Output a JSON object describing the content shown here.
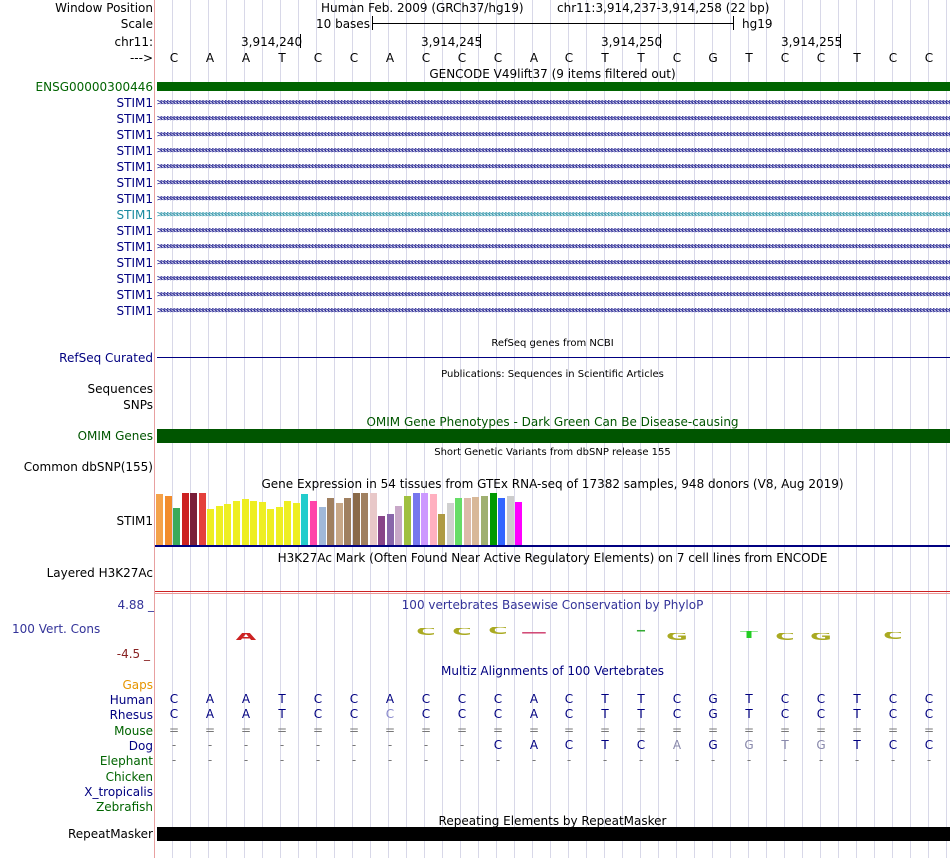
{
  "header": {
    "window_position_label": "Window Position",
    "scale_label": "Scale",
    "chr_label": "chr11:",
    "arrow_label": "--->",
    "assembly": "Human Feb. 2009 (GRCh37/hg19)",
    "position": "chr11:3,914,237-3,914,258 (22 bp)",
    "scale_bases": "10 bases",
    "db": "hg19",
    "coords": [
      "3,914,240",
      "3,914,245",
      "3,914,250",
      "3,914,255"
    ],
    "sequence": [
      "C",
      "A",
      "A",
      "T",
      "C",
      "C",
      "A",
      "C",
      "C",
      "C",
      "A",
      "C",
      "T",
      "T",
      "C",
      "G",
      "T",
      "C",
      "C",
      "T",
      "C",
      "C"
    ]
  },
  "gencode": {
    "title": "GENCODE V49lift37 (9 items filtered out)",
    "gene_label": "ENSG00000300446",
    "transcripts": [
      "STIM1",
      "STIM1",
      "STIM1",
      "STIM1",
      "STIM1",
      "STIM1",
      "STIM1",
      "STIM1",
      "STIM1",
      "STIM1",
      "STIM1",
      "STIM1",
      "STIM1",
      "STIM1"
    ]
  },
  "refseq": {
    "title": "RefSeq genes from NCBI",
    "label": "RefSeq Curated"
  },
  "publications": {
    "title": "Publications: Sequences in Scientific Articles",
    "label1": "Sequences",
    "label2": "SNPs"
  },
  "omim": {
    "title": "OMIM Gene Phenotypes - Dark Green Can Be Disease-causing",
    "label": "OMIM Genes"
  },
  "dbsnp": {
    "title": "Short Genetic Variants from dbSNP release 155",
    "label": "Common dbSNP(155)"
  },
  "gtex": {
    "title": "Gene Expression in 54 tissues from GTEx RNA-seq of 17382 samples, 948 donors (V8, Aug 2019)",
    "label": "STIM1",
    "bars": [
      {
        "v": 0.98,
        "c": "#f4a24a"
      },
      {
        "v": 0.95,
        "c": "#f28c2c"
      },
      {
        "v": 0.72,
        "c": "#3aaa5a"
      },
      {
        "v": 1.0,
        "c": "#cc2222"
      },
      {
        "v": 1.0,
        "c": "#7a1f3a"
      },
      {
        "v": 1.0,
        "c": "#e4403c"
      },
      {
        "v": 0.7,
        "c": "#eeee22"
      },
      {
        "v": 0.75,
        "c": "#eeee22"
      },
      {
        "v": 0.78,
        "c": "#eeee22"
      },
      {
        "v": 0.85,
        "c": "#eeee22"
      },
      {
        "v": 0.88,
        "c": "#eeee22"
      },
      {
        "v": 0.85,
        "c": "#eeee22"
      },
      {
        "v": 0.82,
        "c": "#eeee22"
      },
      {
        "v": 0.7,
        "c": "#eeee22"
      },
      {
        "v": 0.74,
        "c": "#eeee22"
      },
      {
        "v": 0.84,
        "c": "#eeee22"
      },
      {
        "v": 0.8,
        "c": "#eeee22"
      },
      {
        "v": 0.98,
        "c": "#22cccc"
      },
      {
        "v": 0.84,
        "c": "#ff44aa"
      },
      {
        "v": 0.74,
        "c": "#a0b8d8"
      },
      {
        "v": 0.9,
        "c": "#a08060"
      },
      {
        "v": 0.8,
        "c": "#c8a888"
      },
      {
        "v": 0.9,
        "c": "#a08060"
      },
      {
        "v": 1.0,
        "c": "#8a6a4a"
      },
      {
        "v": 1.0,
        "c": "#a08060"
      },
      {
        "v": 1.0,
        "c": "#e8c8c8"
      },
      {
        "v": 0.55,
        "c": "#884488"
      },
      {
        "v": 0.6,
        "c": "#8866aa"
      },
      {
        "v": 0.75,
        "c": "#c8a8c8"
      },
      {
        "v": 0.95,
        "c": "#a0c040"
      },
      {
        "v": 1.0,
        "c": "#7777ee"
      },
      {
        "v": 1.0,
        "c": "#cc99ff"
      },
      {
        "v": 0.98,
        "c": "#ffb0c0"
      },
      {
        "v": 0.6,
        "c": "#ae9a44"
      },
      {
        "v": 0.8,
        "c": "#d0d0d0"
      },
      {
        "v": 0.9,
        "c": "#66dd66"
      },
      {
        "v": 0.9,
        "c": "#ddbbaa"
      },
      {
        "v": 0.92,
        "c": "#d8b898"
      },
      {
        "v": 0.95,
        "c": "#a0b070"
      },
      {
        "v": 1.0,
        "c": "#009900"
      },
      {
        "v": 0.9,
        "c": "#3366ff"
      },
      {
        "v": 0.95,
        "c": "#cccccc"
      },
      {
        "v": 0.82,
        "c": "#ff00ff"
      }
    ]
  },
  "h3k27ac": {
    "title": "H3K27Ac Mark (Often Found Near Active Regulatory Elements) on 7 cell lines from ENCODE",
    "label": "Layered H3K27Ac"
  },
  "phylop": {
    "title": "100 vertebrates Basewise Conservation by PhyloP",
    "label": "100 Vert. Cons",
    "max": "4.88 _",
    "min": "-4.5 _"
  },
  "multiz": {
    "title": "Multiz Alignments of 100 Vertebrates",
    "gaps_label": "Gaps",
    "species": [
      "Human",
      "Rhesus",
      "Mouse",
      "Dog",
      "Elephant",
      "Chicken",
      "X_tropicalis",
      "Zebrafish"
    ],
    "rows": [
      [
        "C",
        "A",
        "A",
        "T",
        "C",
        "C",
        "A",
        "C",
        "C",
        "C",
        "A",
        "C",
        "T",
        "T",
        "C",
        "G",
        "T",
        "C",
        "C",
        "T",
        "C",
        "C"
      ],
      [
        "C",
        "A",
        "A",
        "T",
        "C",
        "C",
        "C",
        "C",
        "C",
        "C",
        "A",
        "C",
        "T",
        "T",
        "C",
        "G",
        "T",
        "C",
        "C",
        "T",
        "C",
        "C"
      ],
      [
        "=",
        "=",
        "=",
        "=",
        "=",
        "=",
        "=",
        "=",
        "=",
        "=",
        "=",
        "=",
        "=",
        "=",
        "=",
        "=",
        "=",
        "=",
        "=",
        "=",
        "=",
        "="
      ],
      [
        "-",
        "-",
        "-",
        "-",
        "-",
        "-",
        "-",
        "-",
        "-",
        "C",
        "A",
        "C",
        "T",
        "C",
        "A",
        "G",
        "G",
        "T",
        "G",
        "T",
        "C",
        "C"
      ],
      [
        "-",
        "-",
        "-",
        "-",
        "-",
        "-",
        "-",
        "-",
        "-",
        "-",
        "-",
        "-",
        "-",
        "-",
        "-",
        "-",
        "-",
        "-",
        "-",
        "-",
        "-",
        "-"
      ]
    ]
  },
  "repeatmasker": {
    "title": "Repeating Elements by RepeatMasker",
    "label": "RepeatMasker"
  },
  "colors": {
    "navy": "#000080",
    "omim": "#005500",
    "gencode_green": "#006400",
    "gap_orange": "#e69500",
    "highlight": "#1a8aa0"
  }
}
